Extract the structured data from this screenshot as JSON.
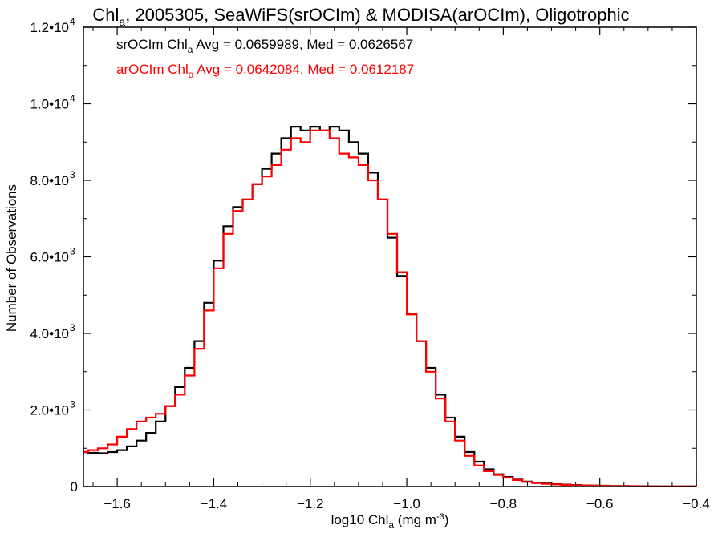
{
  "chart_data": {
    "type": "line",
    "title": {
      "prefix": "Chl",
      "sub": "a",
      "rest": ", 2005305, SeaWiFS(srOCIm) & MODISA(arOCIm), Oligotrophic"
    },
    "xlabel": {
      "prefix": "log10 Chl",
      "sub": "a",
      "rest": " (mg m",
      "sup": "-3",
      "end": ")"
    },
    "ylabel": "Number of Observations",
    "xlim": [
      -1.67,
      -0.4
    ],
    "ylim": [
      0,
      12000
    ],
    "xticks": [
      {
        "value": -1.6,
        "label": "−1.6"
      },
      {
        "value": -1.4,
        "label": "−1.4"
      },
      {
        "value": -1.2,
        "label": "−1.2"
      },
      {
        "value": -1.0,
        "label": "−1.0"
      },
      {
        "value": -0.8,
        "label": "−0.8"
      },
      {
        "value": -0.6,
        "label": "−0.6"
      },
      {
        "value": -0.4,
        "label": "−0.4"
      }
    ],
    "yticks": [
      {
        "value": 0,
        "label": "0",
        "exp": ""
      },
      {
        "value": 2000,
        "label": "2.0•10",
        "exp": "3"
      },
      {
        "value": 4000,
        "label": "4.0•10",
        "exp": "3"
      },
      {
        "value": 6000,
        "label": "6.0•10",
        "exp": "3"
      },
      {
        "value": 8000,
        "label": "8.0•10",
        "exp": "3"
      },
      {
        "value": 10000,
        "label": "1.0•10",
        "exp": "4"
      },
      {
        "value": 12000,
        "label": "1.2•10",
        "exp": "4"
      }
    ],
    "grid": false,
    "annotations": [
      {
        "series": "srOCIm",
        "prefix": "srOCIm Chl",
        "sub": "a",
        "rest": " Avg = 0.0659989, Med = 0.0626567",
        "color": "#000000"
      },
      {
        "series": "arOCIm",
        "prefix": "arOCIm Chl",
        "sub": "a",
        "rest": " Avg = 0.0642084, Med = 0.0612187",
        "color": "#ff0000"
      }
    ],
    "series": [
      {
        "name": "srOCIm",
        "color": "#000000",
        "x": [
          -1.67,
          -1.65,
          -1.63,
          -1.61,
          -1.59,
          -1.57,
          -1.55,
          -1.53,
          -1.51,
          -1.49,
          -1.47,
          -1.45,
          -1.43,
          -1.41,
          -1.39,
          -1.37,
          -1.35,
          -1.33,
          -1.31,
          -1.29,
          -1.27,
          -1.25,
          -1.23,
          -1.21,
          -1.19,
          -1.17,
          -1.15,
          -1.13,
          -1.11,
          -1.09,
          -1.07,
          -1.05,
          -1.03,
          -1.01,
          -0.99,
          -0.97,
          -0.95,
          -0.93,
          -0.91,
          -0.89,
          -0.87,
          -0.85,
          -0.83,
          -0.81,
          -0.79,
          -0.77,
          -0.75,
          -0.73,
          -0.71,
          -0.69,
          -0.67,
          -0.65,
          -0.63,
          -0.61,
          -0.59,
          -0.57,
          -0.55,
          -0.53,
          -0.51,
          -0.49,
          -0.47,
          -0.45,
          -0.43,
          -0.41
        ],
        "y": [
          900,
          880,
          870,
          900,
          950,
          1050,
          1200,
          1400,
          1700,
          2100,
          2600,
          3100,
          3800,
          4800,
          5900,
          6800,
          7300,
          7500,
          7900,
          8300,
          8700,
          9100,
          9400,
          9300,
          9400,
          9300,
          9400,
          9300,
          9000,
          8700,
          8200,
          7500,
          6500,
          5500,
          4500,
          3800,
          3100,
          2400,
          1800,
          1300,
          900,
          650,
          450,
          320,
          250,
          180,
          130,
          100,
          80,
          60,
          50,
          40,
          30,
          25,
          20,
          15,
          12,
          10,
          8,
          6,
          5,
          4,
          3,
          2
        ]
      },
      {
        "name": "arOCIm",
        "color": "#ff0000",
        "x": [
          -1.67,
          -1.65,
          -1.63,
          -1.61,
          -1.59,
          -1.57,
          -1.55,
          -1.53,
          -1.51,
          -1.49,
          -1.47,
          -1.45,
          -1.43,
          -1.41,
          -1.39,
          -1.37,
          -1.35,
          -1.33,
          -1.31,
          -1.29,
          -1.27,
          -1.25,
          -1.23,
          -1.21,
          -1.19,
          -1.17,
          -1.15,
          -1.13,
          -1.11,
          -1.09,
          -1.07,
          -1.05,
          -1.03,
          -1.01,
          -0.99,
          -0.97,
          -0.95,
          -0.93,
          -0.91,
          -0.89,
          -0.87,
          -0.85,
          -0.83,
          -0.81,
          -0.79,
          -0.77,
          -0.75,
          -0.73,
          -0.71,
          -0.69,
          -0.67,
          -0.65,
          -0.63,
          -0.61,
          -0.59,
          -0.57,
          -0.55,
          -0.53,
          -0.51,
          -0.49,
          -0.47,
          -0.45,
          -0.43,
          -0.41
        ],
        "y": [
          900,
          950,
          1000,
          1100,
          1300,
          1500,
          1700,
          1800,
          1900,
          2100,
          2400,
          2900,
          3600,
          4600,
          5700,
          6600,
          7200,
          7500,
          7900,
          8100,
          8400,
          8800,
          9100,
          9000,
          9300,
          9300,
          9100,
          8700,
          8600,
          8400,
          8000,
          7500,
          6600,
          5600,
          4500,
          3800,
          3000,
          2300,
          1700,
          1200,
          800,
          550,
          400,
          300,
          230,
          170,
          120,
          90,
          70,
          55,
          45,
          35,
          28,
          22,
          18,
          14,
          11,
          9,
          7,
          5,
          4,
          3,
          2,
          2
        ]
      }
    ]
  }
}
